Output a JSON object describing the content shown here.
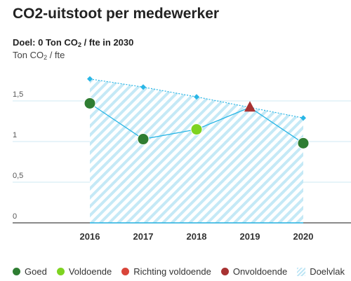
{
  "title": "CO2-uitstoot per medewerker",
  "subtitle_prefix": "Doel: 0 Ton CO",
  "subtitle_sub": "2",
  "subtitle_suffix": " / fte in 2030",
  "unit_prefix": "Ton CO",
  "unit_sub": "2",
  "unit_suffix": " / fte",
  "colors": {
    "goed": "#2e7d32",
    "voldoende": "#7ed321",
    "richting_voldoende": "#d9453a",
    "onvoldoende": "#a83232",
    "line": "#29b6e6",
    "target": "#29b6e6",
    "hatch": "#bfe6f5",
    "grid": "#cfe9f3"
  },
  "legend": [
    {
      "label": "Goed",
      "type": "dot",
      "color": "#2e7d32"
    },
    {
      "label": "Voldoende",
      "type": "dot",
      "color": "#7ed321"
    },
    {
      "label": "Richting voldoende",
      "type": "dot",
      "color": "#d9453a"
    },
    {
      "label": "Onvoldoende",
      "type": "tri",
      "color": "#a83232"
    },
    {
      "label": "Doelvlak",
      "type": "hatch",
      "color": "#bfe6f5"
    }
  ],
  "chart_data": {
    "type": "line",
    "title": "CO2-uitstoot per medewerker",
    "ylabel": "Ton CO2 / fte",
    "ylim": [
      0,
      1.9
    ],
    "yticks": [
      {
        "value": 0,
        "label": "0"
      },
      {
        "value": 0.5,
        "label": "0,5"
      },
      {
        "value": 1,
        "label": "1"
      },
      {
        "value": 1.5,
        "label": "1,5"
      }
    ],
    "categories": [
      "2016",
      "2017",
      "2018",
      "2019",
      "2020"
    ],
    "actual": [
      1.47,
      1.03,
      1.15,
      1.42,
      0.98
    ],
    "status": [
      "Goed",
      "Goed",
      "Voldoende",
      "Onvoldoende",
      "Goed"
    ],
    "target": [
      1.77,
      1.67,
      1.55,
      1.42,
      1.29
    ],
    "grid": true
  }
}
